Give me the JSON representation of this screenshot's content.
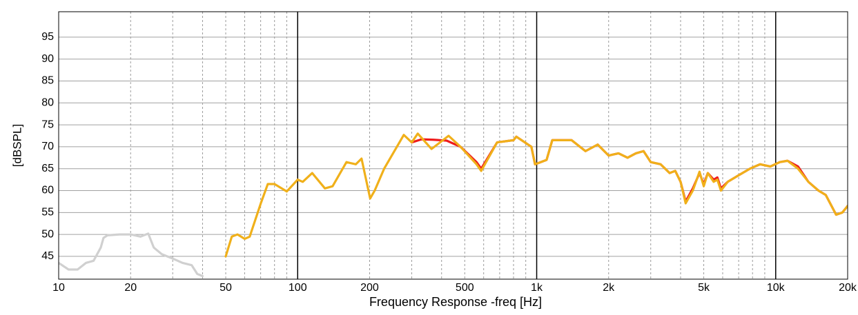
{
  "chart_data": {
    "type": "line",
    "xlabel": "Frequency Response -freq [Hz]",
    "ylabel": "[dBSPL]",
    "xscale": "log",
    "xlim": [
      10,
      20000
    ],
    "ylim": [
      39.8,
      100.8
    ],
    "xticks": [
      10,
      20,
      50,
      100,
      200,
      500,
      {
        "value": 1000,
        "label": "1k"
      },
      {
        "value": 2000,
        "label": "2k"
      },
      {
        "value": 5000,
        "label": "5k"
      },
      {
        "value": 10000,
        "label": "10k"
      },
      {
        "value": 20000,
        "label": "20k"
      }
    ],
    "yticks": [
      45,
      50,
      55,
      60,
      65,
      70,
      75,
      80,
      85,
      90,
      95
    ],
    "x_major_grid": [
      100,
      1000,
      10000
    ],
    "x_minor_grid": [
      20,
      30,
      40,
      50,
      60,
      70,
      80,
      90,
      200,
      300,
      400,
      500,
      600,
      700,
      800,
      900,
      2000,
      3000,
      4000,
      5000,
      6000,
      7000,
      8000,
      9000
    ],
    "grid": true,
    "series": [
      {
        "color": "#d0d0d0",
        "x": [
          10,
          11,
          12,
          13,
          14,
          15,
          15.4,
          16,
          18,
          20,
          22,
          23.7,
          25,
          27,
          30,
          33,
          36,
          38,
          40
        ],
        "values": [
          43.5,
          42,
          42,
          43.5,
          44,
          47,
          49.2,
          49.8,
          50,
          50,
          49.5,
          50.2,
          47,
          45.5,
          44.5,
          43.5,
          43,
          41,
          40.5
        ]
      },
      {
        "color": "#ee1c1c",
        "x": [
          300,
          330,
          370,
          420,
          480,
          560,
          586,
          683,
          800,
          822,
          950,
          984,
          1100,
          1162,
          1400,
          1600,
          1800,
          2000,
          2200,
          2400,
          2600,
          2800,
          3000,
          3300,
          3600,
          3800,
          4000,
          4200,
          4500,
          4800,
          5000,
          5200,
          5500,
          5700,
          5900,
          6300,
          7000,
          7800,
          8600,
          9500,
          10400,
          11200,
          12400,
          13700,
          15100,
          16200,
          17900,
          19000,
          20000
        ],
        "values": [
          71,
          71.7,
          71.6,
          71.4,
          70,
          66.5,
          65,
          71,
          71.5,
          72.3,
          70,
          66,
          67,
          71.5,
          71.5,
          69,
          70.5,
          68,
          68.5,
          67.5,
          68.5,
          69,
          66.5,
          66,
          64,
          64.5,
          62,
          57.5,
          60.5,
          64,
          61.5,
          64,
          62.5,
          63,
          60.5,
          62,
          63.5,
          65,
          66,
          65.5,
          66.5,
          66.8,
          65.5,
          62,
          60,
          59,
          54.5,
          55,
          56.5
        ]
      },
      {
        "color": "#f0b01a",
        "x": [
          50,
          53,
          56,
          60,
          63,
          70,
          75,
          80,
          90,
          100,
          105,
          115,
          130,
          140,
          160,
          175,
          185,
          201,
          210,
          230,
          278,
          300,
          318,
          363,
          428,
          480,
          560,
          586,
          683,
          800,
          822,
          950,
          984,
          1100,
          1162,
          1400,
          1600,
          1800,
          2000,
          2200,
          2400,
          2600,
          2800,
          3000,
          3300,
          3600,
          3800,
          4000,
          4200,
          4500,
          4800,
          5000,
          5200,
          5500,
          5700,
          5900,
          6300,
          7000,
          7800,
          8600,
          9500,
          10400,
          11200,
          12400,
          13700,
          15100,
          16200,
          17900,
          19000,
          20000
        ],
        "values": [
          45,
          49.5,
          50,
          49,
          49.5,
          57,
          61.5,
          61.5,
          59.8,
          62.5,
          62,
          64,
          60.5,
          61,
          66.5,
          66,
          67.3,
          58.2,
          60,
          65,
          72.7,
          71,
          73,
          69.5,
          72.5,
          70,
          66,
          64.5,
          71,
          71.5,
          72.3,
          70,
          66,
          67,
          71.5,
          71.5,
          69,
          70.5,
          68,
          68.5,
          67.5,
          68.5,
          69,
          66.5,
          66,
          64,
          64.5,
          62,
          57.1,
          60,
          64.3,
          61,
          64,
          62,
          62.5,
          60,
          62,
          63.5,
          65,
          66,
          65.5,
          66.5,
          66.8,
          65,
          62,
          60,
          59,
          54.5,
          55,
          56.5
        ]
      }
    ]
  }
}
